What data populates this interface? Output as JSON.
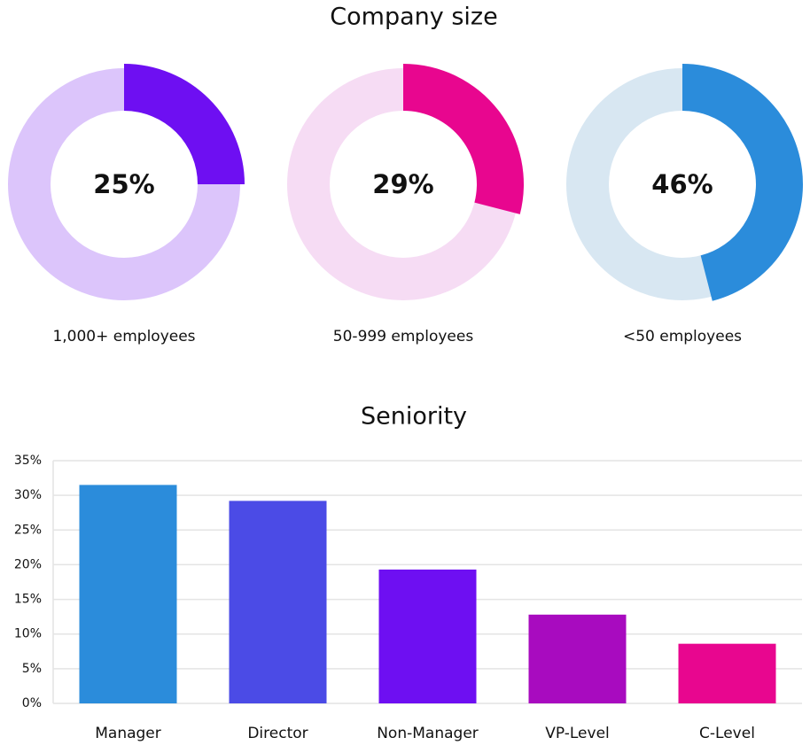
{
  "chart_data": [
    {
      "type": "donut",
      "title": "Company size",
      "categories": [
        "1,000+ employees",
        "50-999 employees",
        "<50 employees"
      ],
      "values": [
        25,
        29,
        46
      ],
      "value_labels": [
        "25%",
        "29%",
        "46%"
      ],
      "colors": [
        "#6e0ff2",
        "#e8068f",
        "#2b8cdb"
      ],
      "track_colors": [
        "#dcc5fb",
        "#f6dcf4",
        "#d8e7f2"
      ]
    },
    {
      "type": "bar",
      "title": "Seniority",
      "categories": [
        "Manager",
        "Director",
        "Non-Manager",
        "VP-Level",
        "C-Level"
      ],
      "values": [
        31.5,
        29.2,
        19.3,
        12.8,
        8.6
      ],
      "colors": [
        "#2b8cdb",
        "#4b4be6",
        "#6e0ff2",
        "#a80bbf",
        "#e8068f"
      ],
      "ylim": [
        0,
        35
      ],
      "yticks": [
        {
          "value": 0,
          "label": "0%"
        },
        {
          "value": 5,
          "label": "5%"
        },
        {
          "value": 10,
          "label": "10%"
        },
        {
          "value": 15,
          "label": "15%"
        },
        {
          "value": 20,
          "label": "20%"
        },
        {
          "value": 25,
          "label": "25%"
        },
        {
          "value": 30,
          "label": "30%"
        },
        {
          "value": 35,
          "label": "35%"
        }
      ],
      "grid": true
    }
  ]
}
